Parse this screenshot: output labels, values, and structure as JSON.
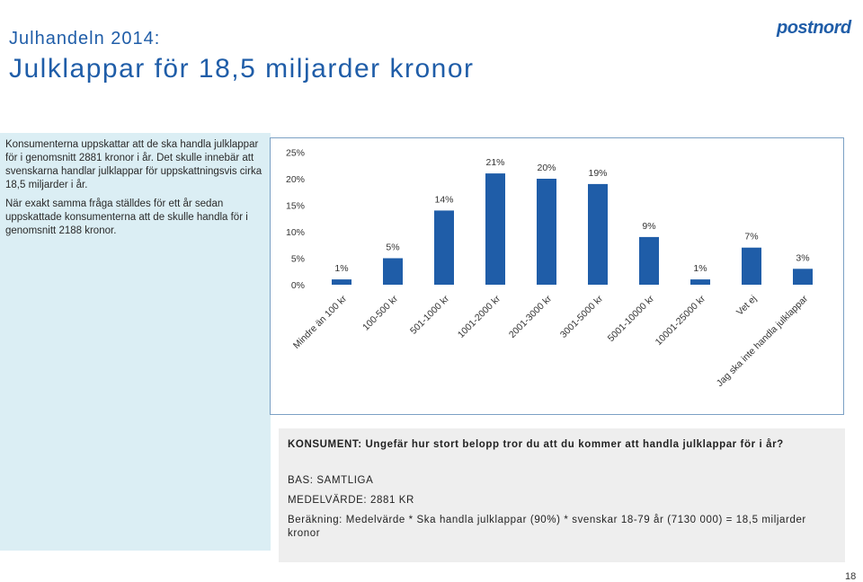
{
  "header": {
    "supertitle": "Julhandeln 2014:",
    "title": "Julklappar för 18,5 miljarder kronor",
    "logo": "postnord"
  },
  "left_panel": {
    "para1": "Konsumenterna uppskattar att de ska handla julklappar för i genomsnitt 2881 kronor i år. Det skulle innebär att svenskarna handlar julklappar för uppskattningsvis cirka 18,5 miljarder i år.",
    "para2": "När exakt samma fråga ställdes för ett år sedan uppskattade konsumenterna att de skulle handla för i genomsnitt 2188 kronor."
  },
  "info": {
    "question": "KONSUMENT: Ungefär hur stort belopp tror du att du kommer att handla julklappar för i år?",
    "base": "BAS: SAMTLIGA",
    "mean": "MEDELVÄRDE: 2881 KR",
    "calc": "Beräkning: Medelvärde *  Ska handla julklappar (90%) * svenskar 18-79 år (7130 000) = 18,5 miljarder kronor"
  },
  "page_number": "18",
  "colors": {
    "bar": "#1f5da8",
    "title": "#1f5da8",
    "panel": "#dbeef4"
  },
  "chart_data": {
    "type": "bar",
    "categories": [
      "Mindre än 100 kr",
      "100-500 kr",
      "501-1000 kr",
      "1001-2000 kr",
      "2001-3000 kr",
      "3001-5000 kr",
      "5001-10000 kr",
      "10001-25000 kr",
      "Vet ej",
      "Jag ska inte handla julklappar"
    ],
    "values": [
      1,
      5,
      14,
      21,
      20,
      19,
      9,
      1,
      7,
      3
    ],
    "value_labels": [
      "1%",
      "5%",
      "14%",
      "21%",
      "20%",
      "19%",
      "9%",
      "1%",
      "7%",
      "3%"
    ],
    "yticks": [
      "0%",
      "5%",
      "10%",
      "15%",
      "20%",
      "25%"
    ],
    "ylim": [
      0,
      25
    ],
    "grid": false
  }
}
